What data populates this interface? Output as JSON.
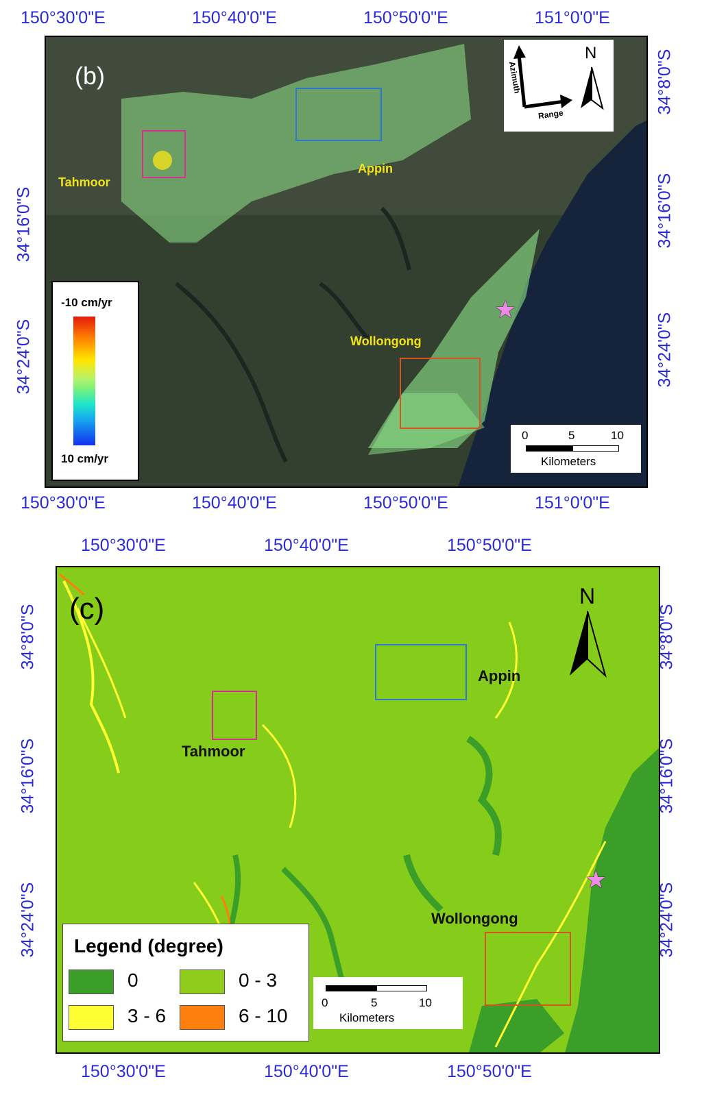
{
  "panel_b": {
    "label": "(b)",
    "top_axis": [
      "150°30'0\"E",
      "150°40'0\"E",
      "150°50'0\"E",
      "151°0'0\"E"
    ],
    "bottom_axis": [
      "150°30'0\"E",
      "150°40'0\"E",
      "150°50'0\"E",
      "151°0'0\"E"
    ],
    "left_axis": [
      "34°16'0\"S",
      "34°24'0\"S"
    ],
    "right_axis": [
      "34°8'0\"S",
      "34°16'0\"S",
      "34°24'0\"S"
    ],
    "towns": {
      "tahmoor": "Tahmoor",
      "appin": "Appin",
      "wollongong": "Wollongong"
    },
    "legend": {
      "top": "-10 cm/yr",
      "bottom": "10 cm/yr"
    },
    "orientation": {
      "azimuth": "Azimuth",
      "range": "Range",
      "north": "N"
    },
    "scale": {
      "ticks": [
        "0",
        "5",
        "10"
      ],
      "unit": "Kilometers"
    },
    "box_colors": {
      "tahmoor": "#d6308f",
      "appin": "#2a78d4",
      "wollongong": "#d6541e"
    }
  },
  "panel_c": {
    "label": "(c)",
    "top_axis": [
      "150°30'0\"E",
      "150°40'0\"E",
      "150°50'0\"E"
    ],
    "bottom_axis": [
      "150°30'0\"E",
      "150°40'0\"E",
      "150°50'0\"E"
    ],
    "left_axis": [
      "34°8'0\"S",
      "34°16'0\"S",
      "34°24'0\"S"
    ],
    "right_axis": [
      "34°8'0\"S",
      "34°16'0\"S",
      "34°24'0\"S"
    ],
    "towns": {
      "tahmoor": "Tahmoor",
      "appin": "Appin",
      "wollongong": "Wollongong"
    },
    "north": "N",
    "legend": {
      "title": "Legend (degree)",
      "items": [
        {
          "label": "0",
          "color": "#3a9e28"
        },
        {
          "label": "0 - 3",
          "color": "#8fcc1c"
        },
        {
          "label": "3 - 6",
          "color": "#ffff33"
        },
        {
          "label": "6 - 10",
          "color": "#ff7f0e"
        }
      ]
    },
    "scale": {
      "ticks": [
        "0",
        "5",
        "10"
      ],
      "unit": "Kilometers"
    }
  }
}
